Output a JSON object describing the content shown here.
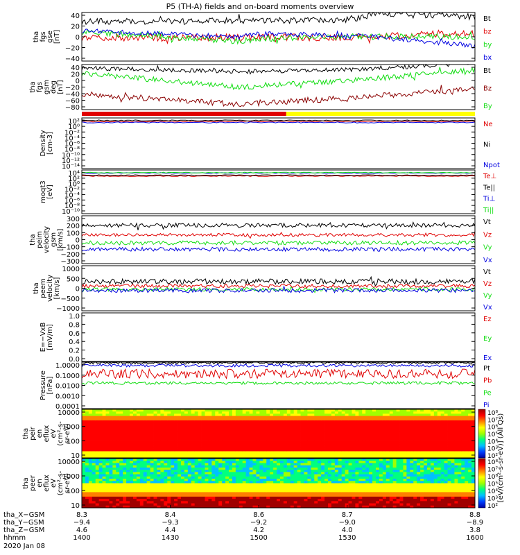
{
  "title": "P5 (TH-A) fields and on-board moments overview",
  "colors": {
    "black": "#000000",
    "red": "#e00000",
    "green": "#11dd11",
    "blue": "#0000e0",
    "darkred": "#8b0000",
    "yellow": "#ffff00"
  },
  "chart_data": [
    {
      "type": "line",
      "id": "fgs_gse",
      "ylabel": [
        "tha",
        "fgs",
        "gse",
        "[nT]"
      ],
      "ylim": [
        -40,
        40
      ],
      "yticks": [
        "40",
        "20",
        "0",
        "−20",
        "−40"
      ],
      "series": [
        {
          "name": "Bt",
          "color": "black",
          "base": 25,
          "trend": [
            0,
            0.7,
            3,
            0.7,
            5,
            0.75,
            14,
            1,
            8
          ],
          "noise": 5
        },
        {
          "name": "bz",
          "color": "red",
          "base": -5,
          "trend": [
            0,
            -5,
            8,
            -2,
            4,
            0.7,
            4,
            0.9,
            10
          ],
          "noise": 6
        },
        {
          "name": "by",
          "color": "green",
          "base": 8,
          "trend": [
            0,
            0.4,
            -15,
            0.45,
            -12,
            0.6,
            -8,
            1,
            -8
          ],
          "noise": 5
        },
        {
          "name": "bx",
          "color": "blue",
          "base": 10,
          "trend": [
            0,
            0.4,
            -10,
            0.45,
            -5,
            0.7,
            -8,
            1,
            -25
          ],
          "noise": 4
        }
      ]
    },
    {
      "type": "line",
      "id": "fgs_gsm_deg",
      "ylabel": [
        "tha",
        "fgs",
        "gsm",
        "deg",
        "[nT]"
      ],
      "ylim": [
        -90,
        40
      ],
      "yticks": [
        "40",
        "20",
        "0",
        "−20",
        "−40",
        "−60",
        "−80"
      ],
      "series": [
        {
          "name": "Bt",
          "color": "black",
          "base": 30,
          "trend": [
            0,
            0.4,
            -10,
            0.7,
            -5,
            1,
            15
          ],
          "noise": 6
        },
        {
          "name": "Bz",
          "color": "darkred",
          "base": -45,
          "trend": [
            0,
            0.4,
            -30,
            0.7,
            -10,
            1,
            15
          ],
          "noise": 8
        },
        {
          "name": "By",
          "color": "green",
          "base": 15,
          "trend": [
            0,
            0.4,
            -40,
            0.7,
            -20,
            1,
            10
          ],
          "noise": 8
        }
      ],
      "legend": [
        "Bt",
        "Bz",
        "By"
      ]
    },
    {
      "type": "line",
      "id": "density",
      "ylabel": [
        "Density",
        "[cm-3]"
      ],
      "ylim": [
        "10^-14",
        "10^2"
      ],
      "yticks": [
        "10²",
        "10⁰",
        "10⁻²",
        "10⁻⁴",
        "10⁻⁶",
        "10⁻⁸",
        "10⁻¹⁰",
        "10⁻¹²",
        "10⁻¹⁴"
      ],
      "series": [
        {
          "name": "Ne",
          "color": "red"
        },
        {
          "name": "Ni",
          "color": "black"
        },
        {
          "name": "Npot",
          "color": "blue"
        }
      ]
    },
    {
      "type": "line",
      "id": "temperature",
      "ylabel": [
        "moqt3",
        "[eV]"
      ],
      "ylim": [
        "10^-10",
        "10^4"
      ],
      "yticks": [
        "10⁴",
        "10²",
        "10⁰",
        "10⁻²",
        "10⁻⁴",
        "10⁻⁶",
        "10⁻⁸",
        "10⁻¹⁰"
      ],
      "series": [
        {
          "name": "Te⊥",
          "color": "red"
        },
        {
          "name": "Te||",
          "color": "black"
        },
        {
          "name": "Ti⊥",
          "color": "blue"
        },
        {
          "name": "Ti||",
          "color": "green"
        }
      ]
    },
    {
      "type": "line",
      "id": "peim_velocity",
      "ylabel": [
        "tha",
        "peim",
        "velocity",
        "gsm",
        "[km/s]"
      ],
      "ylim": [
        -300,
        300
      ],
      "yticks": [
        "300",
        "200",
        "100",
        "0",
        "−100",
        "−200",
        "−300"
      ],
      "series": [
        {
          "name": "Vt",
          "color": "black",
          "base": 180,
          "noise": 25
        },
        {
          "name": "Vz",
          "color": "red",
          "base": 60,
          "noise": 20
        },
        {
          "name": "Vy",
          "color": "green",
          "base": -40,
          "noise": 25
        },
        {
          "name": "Vx",
          "color": "blue",
          "base": -120,
          "noise": 25
        }
      ]
    },
    {
      "type": "line",
      "id": "peem_velocity",
      "ylabel": [
        "tha",
        "peem",
        "velocity",
        "[km/s]"
      ],
      "ylim": [
        -1000,
        1000
      ],
      "yticks": [
        "1000",
        "500",
        "0",
        "−500",
        "−1000"
      ],
      "series": [
        {
          "name": "Vt",
          "color": "black",
          "base": 300,
          "noise": 120
        },
        {
          "name": "Vz",
          "color": "red",
          "base": 100,
          "noise": 80
        },
        {
          "name": "Vy",
          "color": "green",
          "base": -50,
          "noise": 80
        },
        {
          "name": "Vx",
          "color": "blue",
          "base": -100,
          "noise": 90
        }
      ]
    },
    {
      "type": "line",
      "id": "efield",
      "ylabel": [
        "E=−VxB",
        "[mV/m]"
      ],
      "ylim": [
        0.0,
        1.0
      ],
      "yticks": [
        "1.0",
        "0.8",
        "0.6",
        "0.4",
        "0.2",
        "0.0"
      ],
      "series": [
        {
          "name": "Ez",
          "color": "red"
        },
        {
          "name": "Ey",
          "color": "green"
        },
        {
          "name": "Ex",
          "color": "blue"
        }
      ]
    },
    {
      "type": "line",
      "id": "pressure",
      "ylabel": [
        "Pressure",
        "[nPa]"
      ],
      "ylim": [
        0.0001,
        1.0
      ],
      "yticks": [
        "1.0000",
        "0.1000",
        "0.0100",
        "0.0010",
        "0.0001"
      ],
      "series": [
        {
          "name": "Pt",
          "color": "black",
          "logval": -0.05
        },
        {
          "name": "Pb",
          "color": "red",
          "logval": -1.0
        },
        {
          "name": "Pe",
          "color": "green",
          "logval": -1.8
        },
        {
          "name": "Pi",
          "color": "blue",
          "logval": -0.3
        }
      ]
    },
    {
      "type": "heatmap",
      "id": "peir_eflux",
      "ylabel": [
        "tha",
        "peir",
        "en",
        "eflux",
        "eV",
        "(cm²-s-",
        "sr-eV)"
      ],
      "yticks": [
        "10000",
        "1000",
        "100",
        "10"
      ],
      "colorbar": {
        "label": "[eV/(cm²-s-sr-eV)] (All Qs)",
        "ticks": [
          "10⁸",
          "10⁷",
          "10⁶",
          "10⁵",
          "10⁴",
          "10³",
          "10²"
        ]
      }
    },
    {
      "type": "heatmap",
      "id": "peer_eflux",
      "ylabel": [
        "tha",
        "peer",
        "en",
        "eflux",
        "eV",
        "(cm²-s-",
        "sr-eV)"
      ],
      "yticks": [
        "10000",
        "1000",
        "100",
        "10"
      ],
      "colorbar": {
        "ticks": [
          "10⁸",
          "10⁷",
          "10⁶",
          "10⁵",
          "10⁴",
          "10³",
          "10²"
        ]
      }
    }
  ],
  "mode_bar": {
    "first_color": "red",
    "second_color": "yellow",
    "split_fraction": 0.52
  },
  "x_axis": {
    "rows": [
      {
        "label": "tha_X−GSM",
        "values": [
          "8.3",
          "8.4",
          "8.6",
          "8.7",
          "8.8"
        ]
      },
      {
        "label": "tha_Y−GSM",
        "values": [
          "−9.4",
          "−9.3",
          "−9.2",
          "−9.0",
          "−8.9"
        ]
      },
      {
        "label": "tha_Z−GSM",
        "values": [
          "4.6",
          "4.4",
          "4.2",
          "4.0",
          "3.8"
        ]
      },
      {
        "label": "hhmm",
        "values": [
          "1400",
          "1430",
          "1500",
          "1530",
          "1600"
        ]
      }
    ],
    "date": "2020 Jan 08"
  }
}
